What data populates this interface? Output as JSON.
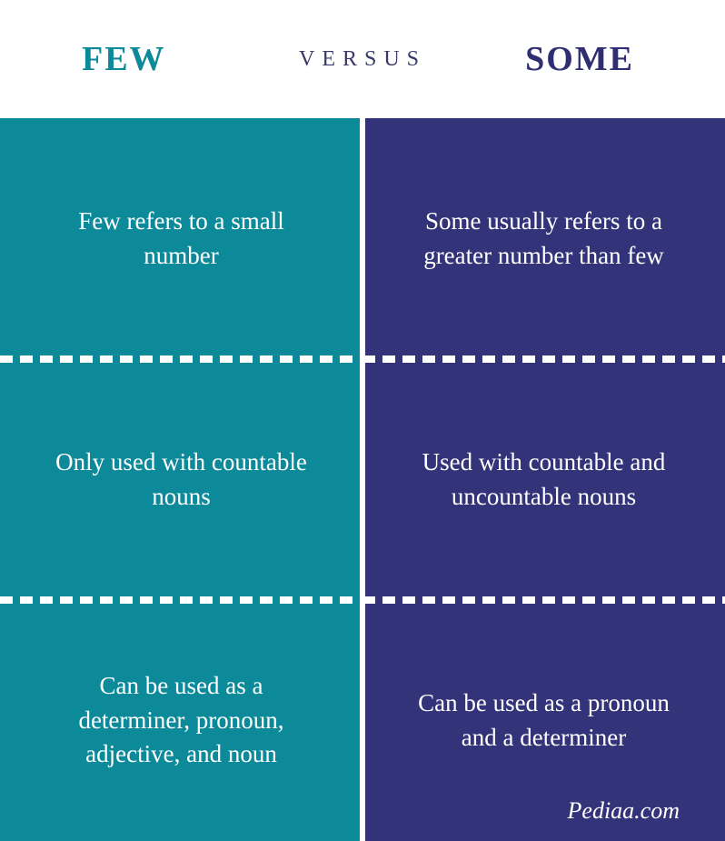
{
  "header": {
    "left": "FEW",
    "center": "VERSUS",
    "right": "SOME",
    "left_color": "#0d8a99",
    "center_color": "#3a3a6a",
    "right_color": "#2e2e70",
    "left_fontsize": "38px",
    "center_fontsize": "24px",
    "right_fontsize": "38px"
  },
  "columns": {
    "left": {
      "background": "#0d8a99",
      "cells": [
        "Few refers to a small number",
        "Only used with countable nouns",
        "Can be used as a determiner, pronoun, adjective, and noun"
      ]
    },
    "right": {
      "background": "#333379",
      "cells": [
        "Some usually refers to a greater number than few",
        "Used with countable and uncountable nouns",
        "Can be used as a pronoun and a determiner"
      ]
    }
  },
  "cell_fontsize": "27px",
  "attribution": {
    "text": "Pediaa.com",
    "fontsize": "26px"
  },
  "divider_color": "#ffffff"
}
